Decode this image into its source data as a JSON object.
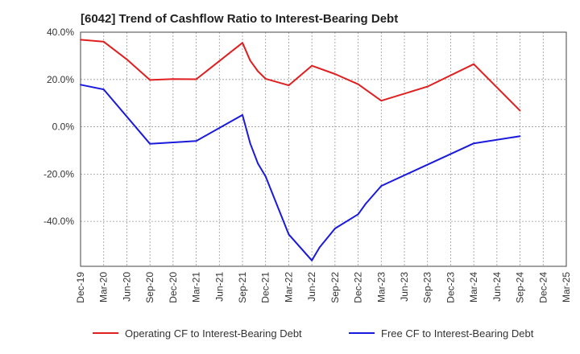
{
  "chart_data": {
    "type": "line",
    "title": "[6042]  Trend of Cashflow Ratio to Interest-Bearing Debt",
    "xlabel": "",
    "ylabel": "",
    "x_tick_labels": [
      "Dec-19",
      "Mar-20",
      "Jun-20",
      "Sep-20",
      "Dec-20",
      "Mar-21",
      "Jun-21",
      "Sep-21",
      "Dec-21",
      "Mar-22",
      "Jun-22",
      "Sep-22",
      "Dec-22",
      "Mar-23",
      "Jun-23",
      "Sep-23",
      "Dec-23",
      "Mar-24",
      "Jun-24",
      "Sep-24",
      "Dec-24",
      "Mar-25"
    ],
    "y_tick_labels": [
      "40.0%",
      "20.0%",
      "0.0%",
      "-20.0%",
      "-40.0%"
    ],
    "y_ticks": [
      40,
      20,
      0,
      -20,
      -40
    ],
    "ylim": [
      -59,
      40
    ],
    "grid": true,
    "legend_position": "bottom",
    "series": [
      {
        "name": "Operating CF to Interest-Bearing Debt",
        "color": "#e02020",
        "points": [
          [
            "Dec-19",
            36.8
          ],
          [
            "Mar-20",
            36.0
          ],
          [
            "Jun-20",
            28.5
          ],
          [
            "Sep-20",
            19.8
          ],
          [
            "Dec-20",
            20.2
          ],
          [
            "Mar-21",
            20.1
          ],
          [
            "Sep-21",
            35.5
          ],
          [
            "Oct-21",
            28.0
          ],
          [
            "Nov-21",
            23.5
          ],
          [
            "Dec-21",
            20.3
          ],
          [
            "Mar-22",
            17.5
          ],
          [
            "Jun-22",
            25.8
          ],
          [
            "Sep-22",
            22.3
          ],
          [
            "Dec-22",
            18.0
          ],
          [
            "Mar-23",
            11.0
          ],
          [
            "Sep-23",
            17.0
          ],
          [
            "Mar-24",
            26.5
          ],
          [
            "Sep-24",
            6.8
          ]
        ]
      },
      {
        "name": "Free CF to Interest-Bearing Debt",
        "color": "#1a1adf",
        "points": [
          [
            "Dec-19",
            17.8
          ],
          [
            "Mar-20",
            15.8
          ],
          [
            "Sep-20",
            -7.2
          ],
          [
            "Mar-21",
            -6.0
          ],
          [
            "Sep-21",
            5.0
          ],
          [
            "Oct-21",
            -7.0
          ],
          [
            "Nov-21",
            -15.5
          ],
          [
            "Dec-21",
            -21.0
          ],
          [
            "Mar-22",
            -45.5
          ],
          [
            "Jun-22",
            -56.5
          ],
          [
            "Jul-22",
            -51.0
          ],
          [
            "Aug-22",
            -47.0
          ],
          [
            "Sep-22",
            -43.0
          ],
          [
            "Dec-22",
            -37.0
          ],
          [
            "Jan-23",
            -32.5
          ],
          [
            "Mar-23",
            -25.0
          ],
          [
            "Mar-24",
            -7.0
          ],
          [
            "Sep-24",
            -4.0
          ]
        ]
      }
    ]
  }
}
